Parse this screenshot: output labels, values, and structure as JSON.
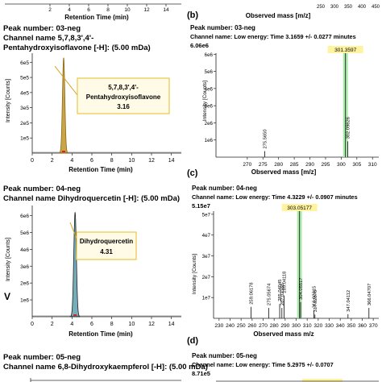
{
  "panels": {
    "top_strip": {
      "left_ticks": [
        "2",
        "4",
        "6",
        "8",
        "10",
        "12",
        "14"
      ],
      "left_xlabel": "Retention Time (min)",
      "right_ticks": [
        "250",
        "300",
        "350",
        "400",
        "450"
      ],
      "right_xlabel": "Observed mass [m/z]"
    },
    "a_left": {
      "peak": "Peak number: 03-neg",
      "channel_line1": "Channel name 5,7,8,3',4'-",
      "channel_line2": "Pentahydroxyisoflavone [-H]: (5.00 mDa)",
      "callout_line1": "5,7,8,3',4'-",
      "callout_line2": "Pentahydroxyisoflavone",
      "callout_line3": "3.16",
      "ylabel": "Intensity [Counts]",
      "xlabel": "Retention Time (min)"
    },
    "b": {
      "label": "(b)",
      "peak": "Peak number: 03-neg",
      "channel": "Channel name: Low energy: Time 3.1659 +/- 0.0277 minutes",
      "max": "6.06e6",
      "ylabel": "Intensity [Counts]",
      "xlabel": "Observed mass [m/z]"
    },
    "c_left": {
      "peak": "Peak number: 04-neg",
      "channel": "Channel name Dihydroquercetin [-H]: (5.00 mDa)",
      "callout_line1": "Dihydroquercetin",
      "callout_line2": "4.31",
      "ylabel": "Intensity [Counts]",
      "xlabel": "Retention Time (min)",
      "side_letter": "V"
    },
    "c": {
      "label": "(c)",
      "peak": "Peak number: 04-neg",
      "channel": "Channel name: Low energy: Time 4.3229 +/- 0.0907 minutes",
      "max": "5.15e7",
      "ylabel": "Intensity [Counts]",
      "xlabel": "Observed mass m/z"
    },
    "d_left": {
      "peak": "Peak number: 05-neg",
      "channel": "Channel name 6,8-Dihydroxykaempferol [-H]: (5.00 mDa)"
    },
    "d": {
      "label": "(d)",
      "peak": "Peak number: 05-neg",
      "channel": "Channel name: Low energy: Time 5.2975 +/- 0.0707",
      "max": "8.71e5"
    }
  },
  "colors": {
    "peak_a_fill": "#b8860b",
    "peak_a_stroke": "#8b6914",
    "peak_c_fill": "#4a90a4",
    "callout_bg": "#fffbe6",
    "callout_border": "#e8c84a",
    "highlight": "#9fe89f",
    "label_box": "#fff3a0"
  },
  "chart_data": [
    {
      "id": "chrom-a",
      "type": "line",
      "xlabel": "Retention Time (min)",
      "ylabel": "Intensity [Counts]",
      "xlim": [
        0,
        15
      ],
      "ylim": [
        0,
        6.6
      ],
      "x_ticks": [
        0,
        2,
        4,
        6,
        8,
        10,
        12,
        14
      ],
      "y_ticks": [
        1,
        2,
        3,
        4,
        5,
        6
      ],
      "y_tick_labels": [
        "1e5",
        "2e5",
        "3e5",
        "4e5",
        "5e5",
        "6e5"
      ],
      "peak_rt": 3.16,
      "peak_height": 6.3,
      "peak_width": 0.12
    },
    {
      "id": "ms-b",
      "type": "bar",
      "xlabel": "Observed mass [m/z]",
      "ylabel": "Intensity [Counts]",
      "xlim": [
        260,
        312
      ],
      "ylim": [
        0,
        6.06
      ],
      "x_ticks": [
        270,
        275,
        280,
        285,
        290,
        295,
        300,
        305,
        310
      ],
      "y_ticks": [
        1,
        2,
        3,
        4,
        5,
        6
      ],
      "y_tick_labels": [
        "1e6",
        "2e6",
        "3e6",
        "4e6",
        "5e6",
        "6e6"
      ],
      "peaks": [
        {
          "mz": 275.565,
          "intensity": 0.35,
          "label": "275.5650"
        },
        {
          "mz": 301.3597,
          "intensity": 6.06,
          "label": "301.3597"
        },
        {
          "mz": 302.09826,
          "intensity": 0.92,
          "label": "302.09826"
        }
      ]
    },
    {
      "id": "chrom-c",
      "type": "line",
      "xlabel": "Retention Time (min)",
      "ylabel": "Intensity [Counts]",
      "xlim": [
        0,
        15
      ],
      "ylim": [
        0,
        6.6
      ],
      "x_ticks": [
        0,
        2,
        4,
        6,
        8,
        10,
        12,
        14
      ],
      "y_ticks": [
        1,
        2,
        3,
        4,
        5,
        6
      ],
      "y_tick_labels": [
        "1e6",
        "2e6",
        "3e6",
        "4e6",
        "5e6",
        "6e6"
      ],
      "peak_rt": 4.31,
      "peak_height": 6.2,
      "peak_width": 0.13
    },
    {
      "id": "ms-c",
      "type": "bar",
      "xlabel": "Observed mass m/z",
      "ylabel": "Intensity [Counts]",
      "xlim": [
        225,
        375
      ],
      "ylim": [
        0,
        5.15
      ],
      "x_ticks": [
        230,
        240,
        250,
        260,
        270,
        280,
        290,
        300,
        310,
        320,
        330,
        340,
        350,
        360,
        370
      ],
      "y_ticks": [
        1,
        2,
        3,
        4,
        5
      ],
      "y_tick_labels": [
        "1e7",
        "2e7",
        "3e7",
        "4e7",
        "5e7"
      ],
      "peaks": [
        {
          "mz": 259.06178,
          "intensity": 0.55,
          "label": "259.06178"
        },
        {
          "mz": 275.05674,
          "intensity": 0.5,
          "label": "275.05674"
        },
        {
          "mz": 285.04045,
          "intensity": 0.7,
          "label": "285.04045"
        },
        {
          "mz": 287.02168,
          "intensity": 0.5,
          "label": "287.02168"
        },
        {
          "mz": 289.04118,
          "intensity": 1.1,
          "label": "289.04118"
        },
        {
          "mz": 303.05177,
          "intensity": 5.15,
          "label": "303.05177"
        },
        {
          "mz": 304.05517,
          "intensity": 0.78,
          "label": "304.05517"
        },
        {
          "mz": 316.02315,
          "intensity": 0.38,
          "label": "316.02315"
        },
        {
          "mz": 317.0287,
          "intensity": 0.18,
          "label": "317.02870"
        },
        {
          "mz": 347.04112,
          "intensity": 0.2,
          "label": "347.04112"
        },
        {
          "mz": 366.04707,
          "intensity": 0.5,
          "label": "366.04707"
        }
      ]
    }
  ]
}
